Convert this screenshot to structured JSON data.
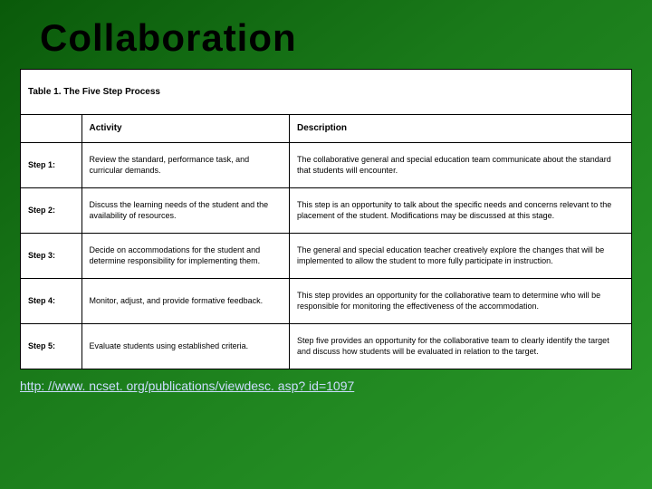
{
  "title": "Collaboration",
  "table": {
    "caption": "Table 1. The Five Step Process",
    "headers": {
      "activity": "Activity",
      "description": "Description"
    },
    "rows": [
      {
        "step": "Step 1:",
        "activity": "Review the standard, performance task, and curricular demands.",
        "description": "The collaborative general and special education team communicate about the standard that students will encounter."
      },
      {
        "step": "Step 2:",
        "activity": "Discuss the learning needs of the student and the availability of resources.",
        "description": "This step is an opportunity to talk about the specific needs and concerns relevant to the placement of the student. Modifications may be discussed at this stage."
      },
      {
        "step": "Step 3:",
        "activity": "Decide on accommodations for the student and determine responsibility for implementing them.",
        "description": "The general and special education teacher creatively explore the changes that will be implemented to allow the student to more fully participate in instruction."
      },
      {
        "step": "Step 4:",
        "activity": "Monitor, adjust, and provide formative feedback.",
        "description": "This step provides an opportunity for the collaborative team to determine who will be responsible for monitoring the effectiveness of the accommodation."
      },
      {
        "step": "Step 5:",
        "activity": "Evaluate students using established criteria.",
        "description": "Step five provides an opportunity for the collaborative team to clearly identify the target and discuss how students will be evaluated in relation to the target."
      }
    ]
  },
  "link": "http: //www. ncset. org/publications/viewdesc. asp? id=1097"
}
